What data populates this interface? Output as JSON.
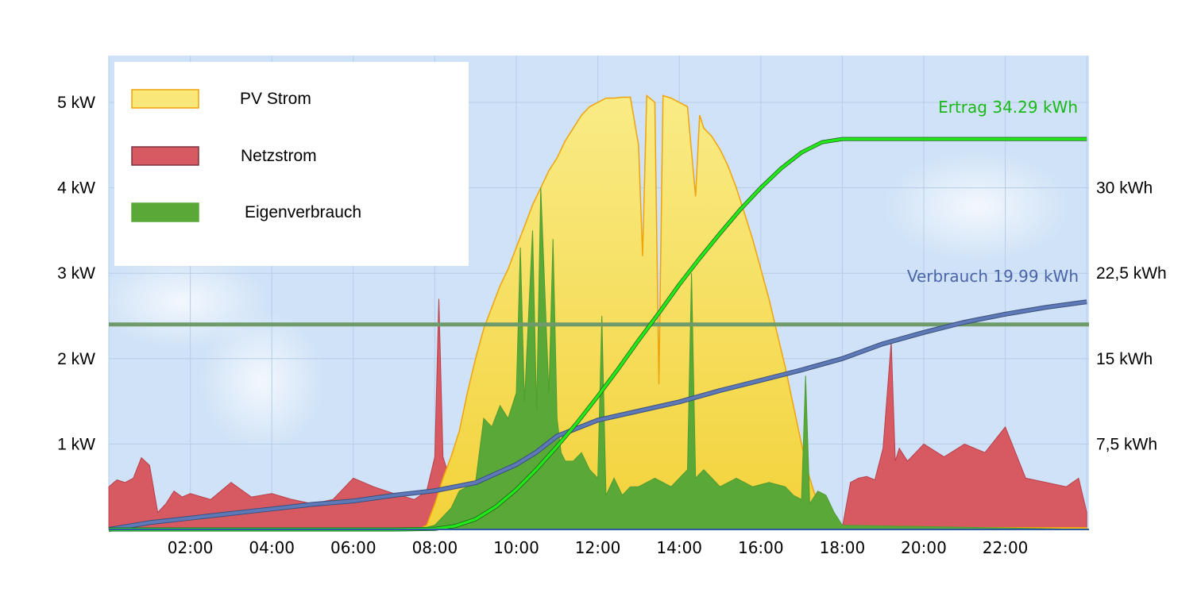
{
  "chart_data": {
    "type": "area",
    "x_unit": "hours of day",
    "x_ticks": [
      "02:00",
      "04:00",
      "06:00",
      "08:00",
      "10:00",
      "12:00",
      "14:00",
      "16:00",
      "18:00",
      "20:00",
      "22:00"
    ],
    "y_left": {
      "unit": "kW",
      "ticks": [
        "1 kW",
        "2 kW",
        "3 kW",
        "4 kW",
        "5 kW"
      ],
      "ylim": [
        0,
        5.1
      ]
    },
    "y_right": {
      "unit": "kWh",
      "ticks": [
        "7,5 kWh",
        "15 kWh",
        "22,5 kWh",
        "30 kWh"
      ],
      "ylim": [
        0,
        38.25
      ]
    },
    "grid": true,
    "legend_position": "top-left",
    "legend": [
      {
        "label": "PV Strom",
        "color": "#f9e77a",
        "border": "#f0a30a"
      },
      {
        "label": "Netzstrom",
        "color": "#d75a62",
        "border": "#7a3340"
      },
      {
        "label": "Eigenverbrauch",
        "color": "#5aa838",
        "border": "#5aa838"
      }
    ],
    "threshold_line": {
      "value_kw": 2.4,
      "color": "#6f9a6a"
    },
    "series": [
      {
        "name": "PV Strom",
        "axis": "left",
        "color": "#f9e77a",
        "x": [
          0,
          7.6,
          7.8,
          8.0,
          8.2,
          8.4,
          8.6,
          8.8,
          9.0,
          9.2,
          9.4,
          9.6,
          9.8,
          10.0,
          10.2,
          10.4,
          10.6,
          10.8,
          11.0,
          11.2,
          11.4,
          11.6,
          11.8,
          12.0,
          12.2,
          12.4,
          12.6,
          12.8,
          13.0,
          13.1,
          13.2,
          13.4,
          13.5,
          13.6,
          13.8,
          14.0,
          14.2,
          14.4,
          14.5,
          14.6,
          14.8,
          15.0,
          15.2,
          15.4,
          15.6,
          15.8,
          16.0,
          16.2,
          16.4,
          16.6,
          16.8,
          17.0,
          17.2,
          17.4,
          17.6,
          17.8,
          18.0,
          18.2,
          18.4,
          24
        ],
        "values": [
          0,
          0,
          0.05,
          0.3,
          0.6,
          0.85,
          1.15,
          1.6,
          2.0,
          2.35,
          2.6,
          2.85,
          3.05,
          3.3,
          3.55,
          3.8,
          4.0,
          4.2,
          4.35,
          4.55,
          4.7,
          4.85,
          4.95,
          5.0,
          5.05,
          5.05,
          5.06,
          5.06,
          4.5,
          3.2,
          5.08,
          5.0,
          1.7,
          5.08,
          5.05,
          5.0,
          4.95,
          3.9,
          4.85,
          4.7,
          4.6,
          4.45,
          4.25,
          4.0,
          3.7,
          3.4,
          3.05,
          2.7,
          2.3,
          1.9,
          1.45,
          1.0,
          0.6,
          0.3,
          0.12,
          0.05,
          0.02,
          0.02,
          0.02,
          0.02
        ]
      },
      {
        "name": "Netzstrom",
        "axis": "left",
        "color": "#d75a62",
        "x": [
          0,
          0.2,
          0.4,
          0.6,
          0.8,
          1.0,
          1.2,
          1.4,
          1.6,
          1.8,
          2.0,
          2.5,
          3.0,
          3.5,
          4.0,
          4.5,
          5.0,
          5.5,
          6.0,
          6.5,
          7.0,
          7.5,
          7.8,
          8.0,
          8.1,
          8.2,
          8.3,
          8.4,
          8.6,
          8.8,
          9.0,
          18.0,
          18.2,
          18.4,
          18.6,
          18.8,
          19.0,
          19.2,
          19.3,
          19.4,
          19.6,
          19.8,
          20.0,
          20.5,
          21.0,
          21.5,
          22.0,
          22.5,
          23.0,
          23.5,
          23.8,
          24
        ],
        "values": [
          0.5,
          0.58,
          0.55,
          0.6,
          0.84,
          0.75,
          0.2,
          0.3,
          0.45,
          0.38,
          0.42,
          0.35,
          0.55,
          0.38,
          0.42,
          0.35,
          0.3,
          0.35,
          0.6,
          0.5,
          0.42,
          0.35,
          0.45,
          0.85,
          2.7,
          0.85,
          0.7,
          0.5,
          0.3,
          0.1,
          0.02,
          0.02,
          0.55,
          0.6,
          0.62,
          0.58,
          0.95,
          2.2,
          0.8,
          0.95,
          0.8,
          0.9,
          1.0,
          0.85,
          1.0,
          0.9,
          1.2,
          0.6,
          0.55,
          0.5,
          0.6,
          0.2
        ]
      },
      {
        "name": "Eigenverbrauch",
        "axis": "left",
        "color": "#5aa838",
        "x": [
          0,
          7.6,
          8.0,
          8.4,
          8.6,
          9.0,
          9.2,
          9.4,
          9.6,
          9.8,
          10.0,
          10.1,
          10.2,
          10.4,
          10.5,
          10.6,
          10.8,
          10.9,
          11.0,
          11.1,
          11.2,
          11.4,
          11.6,
          11.8,
          12.0,
          12.1,
          12.2,
          12.4,
          12.6,
          12.8,
          13.0,
          13.4,
          13.8,
          14.2,
          14.3,
          14.4,
          14.6,
          14.8,
          15.0,
          15.4,
          15.8,
          16.2,
          16.6,
          16.8,
          17.0,
          17.1,
          17.2,
          17.4,
          17.6,
          17.8,
          18.0,
          24
        ],
        "values": [
          0,
          0,
          0.05,
          0.25,
          0.45,
          0.55,
          1.3,
          1.2,
          1.45,
          1.3,
          1.6,
          3.3,
          1.5,
          3.5,
          1.4,
          4.0,
          1.6,
          3.4,
          1.3,
          0.9,
          0.8,
          0.8,
          0.9,
          0.7,
          0.6,
          2.5,
          0.4,
          0.6,
          0.4,
          0.5,
          0.5,
          0.6,
          0.5,
          0.7,
          3.0,
          0.6,
          0.7,
          0.6,
          0.5,
          0.6,
          0.5,
          0.55,
          0.5,
          0.4,
          0.35,
          1.8,
          0.3,
          0.45,
          0.4,
          0.2,
          0.05,
          0
        ]
      },
      {
        "name": "Ertrag",
        "axis": "right",
        "color": "#22e81a",
        "label": "Ertrag 34.29 kWh",
        "x": [
          0,
          7.0,
          8.0,
          8.5,
          9.0,
          9.5,
          10.0,
          10.5,
          11.0,
          11.5,
          12.0,
          12.5,
          13.0,
          13.5,
          14.0,
          14.5,
          15.0,
          15.5,
          16.0,
          16.5,
          17.0,
          17.5,
          18.0,
          24
        ],
        "values": [
          0,
          0,
          0.05,
          0.3,
          0.9,
          2.0,
          3.5,
          5.3,
          7.3,
          9.4,
          11.7,
          14.1,
          16.6,
          19.0,
          21.5,
          23.8,
          26.0,
          28.1,
          30.0,
          31.7,
          33.1,
          34.0,
          34.29,
          34.29
        ]
      },
      {
        "name": "Verbrauch",
        "axis": "right",
        "color": "#5d79b8",
        "label": "Verbrauch 19.99 kWh",
        "x": [
          0,
          1,
          2,
          3,
          4,
          5,
          6,
          7,
          8,
          9,
          10,
          10.5,
          11,
          12,
          13,
          14,
          15,
          16,
          17,
          18,
          19,
          20,
          21,
          22,
          23,
          24
        ],
        "values": [
          0,
          0.6,
          1.0,
          1.4,
          1.8,
          2.2,
          2.5,
          3.0,
          3.4,
          4.1,
          5.7,
          6.8,
          8.2,
          9.6,
          10.4,
          11.2,
          12.2,
          13.1,
          14.0,
          15.0,
          16.3,
          17.3,
          18.2,
          18.9,
          19.5,
          19.99
        ]
      }
    ]
  }
}
